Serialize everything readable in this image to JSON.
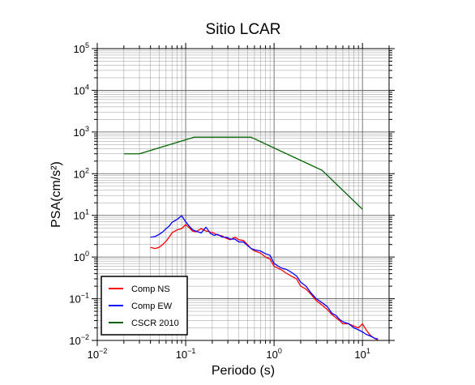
{
  "chart_data": {
    "type": "line",
    "title": "Sitio LCAR",
    "xlabel": "Periodo (s)",
    "ylabel": "PSA(cm/s²)",
    "xscale": "log",
    "yscale": "log",
    "xlim": [
      0.01,
      20
    ],
    "ylim": [
      0.01,
      100000
    ],
    "grid": true,
    "legend_position": "bottom-left",
    "x_ticks": [
      {
        "base": "10",
        "exp": "−2",
        "value": 0.01
      },
      {
        "base": "10",
        "exp": "−1",
        "value": 0.1
      },
      {
        "base": "10",
        "exp": "0",
        "value": 1
      },
      {
        "base": "10",
        "exp": "1",
        "value": 10
      }
    ],
    "y_ticks": [
      {
        "base": "10",
        "exp": "−2",
        "value": 0.01
      },
      {
        "base": "10",
        "exp": "−1",
        "value": 0.1
      },
      {
        "base": "10",
        "exp": "0",
        "value": 1
      },
      {
        "base": "10",
        "exp": "1",
        "value": 10
      },
      {
        "base": "10",
        "exp": "2",
        "value": 100
      },
      {
        "base": "10",
        "exp": "3",
        "value": 1000
      },
      {
        "base": "10",
        "exp": "4",
        "value": 10000
      },
      {
        "base": "10",
        "exp": "5",
        "value": 100000
      }
    ],
    "series": [
      {
        "name": "Comp NS",
        "color": "#ff0000",
        "x": [
          0.04,
          0.045,
          0.05,
          0.055,
          0.06,
          0.065,
          0.07,
          0.08,
          0.09,
          0.1,
          0.11,
          0.12,
          0.13,
          0.15,
          0.17,
          0.19,
          0.21,
          0.23,
          0.26,
          0.29,
          0.32,
          0.36,
          0.4,
          0.45,
          0.5,
          0.55,
          0.6,
          0.7,
          0.8,
          0.9,
          1.0,
          1.2,
          1.4,
          1.6,
          1.8,
          2.0,
          2.3,
          2.6,
          3.0,
          3.5,
          4.0,
          4.5,
          5.0,
          5.5,
          6.0,
          7.0,
          8.0,
          9.0,
          10.0,
          11.0,
          12.0,
          13.0,
          14.0,
          15.0
        ],
        "values": [
          1.7,
          1.6,
          1.7,
          2.0,
          2.4,
          3.0,
          3.8,
          4.5,
          4.8,
          6.0,
          5.0,
          4.2,
          4.0,
          4.8,
          4.2,
          4.0,
          3.7,
          3.4,
          3.2,
          2.8,
          2.6,
          3.0,
          2.6,
          2.5,
          2.0,
          1.6,
          1.4,
          1.25,
          1.0,
          0.9,
          0.6,
          0.5,
          0.4,
          0.34,
          0.3,
          0.2,
          0.17,
          0.13,
          0.09,
          0.07,
          0.055,
          0.042,
          0.035,
          0.03,
          0.025,
          0.025,
          0.022,
          0.02,
          0.025,
          0.018,
          0.014,
          0.012,
          0.011,
          0.01
        ]
      },
      {
        "name": "Comp EW",
        "color": "#0000ff",
        "x": [
          0.04,
          0.045,
          0.05,
          0.055,
          0.06,
          0.065,
          0.07,
          0.08,
          0.09,
          0.1,
          0.11,
          0.12,
          0.13,
          0.15,
          0.17,
          0.19,
          0.21,
          0.23,
          0.26,
          0.29,
          0.32,
          0.36,
          0.4,
          0.45,
          0.5,
          0.55,
          0.6,
          0.7,
          0.8,
          0.9,
          1.0,
          1.2,
          1.4,
          1.6,
          1.8,
          2.0,
          2.3,
          2.6,
          3.0,
          3.5,
          4.0,
          4.5,
          5.0,
          5.5,
          6.0,
          7.0,
          8.0,
          9.0,
          10.0,
          11.0,
          12.0,
          13.0,
          14.0,
          15.0
        ],
        "values": [
          3.0,
          3.1,
          3.5,
          4.0,
          4.8,
          5.5,
          6.8,
          8.0,
          9.8,
          7.0,
          5.5,
          4.5,
          4.2,
          3.8,
          5.2,
          3.7,
          3.3,
          3.5,
          3.0,
          3.0,
          2.7,
          2.7,
          2.3,
          2.3,
          1.9,
          1.6,
          1.5,
          1.4,
          1.2,
          1.1,
          0.7,
          0.55,
          0.5,
          0.42,
          0.35,
          0.25,
          0.2,
          0.14,
          0.1,
          0.08,
          0.065,
          0.045,
          0.04,
          0.032,
          0.028,
          0.025,
          0.02,
          0.018,
          0.016,
          0.014,
          0.013,
          0.012,
          0.011,
          0.011
        ]
      },
      {
        "name": "CSCR 2010",
        "color": "#006400",
        "x": [
          0.02,
          0.03,
          0.125,
          0.55,
          3.5,
          10
        ],
        "values": [
          300,
          300,
          750,
          750,
          120,
          14
        ]
      }
    ]
  }
}
